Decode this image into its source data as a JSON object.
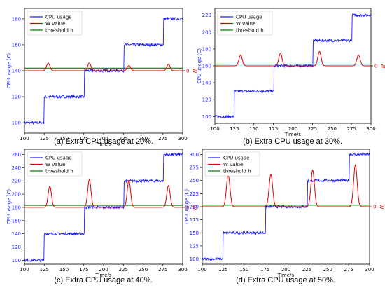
{
  "chart_data": [
    {
      "type": "line",
      "caption": "(a) Extra CPU usage at 20%.",
      "xlabel": "Time/s",
      "ylabel": "CPU usage (C)",
      "right_ylabel": "W",
      "right_ytick": "0",
      "xlim": [
        100,
        300
      ],
      "ylim": [
        92,
        188
      ],
      "xticks": [
        "100",
        "125",
        "150",
        "175",
        "200",
        "225",
        "250",
        "275",
        "300"
      ],
      "yticks": [
        "100",
        "120",
        "140",
        "160",
        "180"
      ],
      "legend": {
        "position": "top-left",
        "entries": [
          "CPU usage",
          "W value",
          "threshold h"
        ]
      },
      "series": [
        {
          "name": "CPU usage",
          "color": "#1a1aff",
          "steps": [
            [
              100,
              100
            ],
            [
              125,
              120
            ],
            [
              176,
              140
            ],
            [
              226,
              160
            ],
            [
              276,
              180
            ]
          ]
        },
        {
          "name": "W value",
          "color": "#e00000",
          "baseline": 140,
          "peaks": [
            [
              130,
              146
            ],
            [
              182,
              146
            ],
            [
              232,
              144
            ],
            [
              282,
              145
            ]
          ]
        },
        {
          "name": "threshold h",
          "color": "#008000",
          "value": 142
        }
      ]
    },
    {
      "type": "line",
      "caption": "(b) Extra CPU usage at 30%.",
      "xlabel": "Time/s",
      "ylabel": "CPU usage (C)",
      "right_ylabel": "W",
      "right_ytick": "0",
      "xlim": [
        100,
        300
      ],
      "ylim": [
        92,
        228
      ],
      "xticks": [
        "100",
        "125",
        "150",
        "175",
        "200",
        "225",
        "250",
        "275",
        "300"
      ],
      "yticks": [
        "100",
        "120",
        "140",
        "160",
        "180",
        "200",
        "220"
      ],
      "legend": {
        "position": "top-left",
        "entries": [
          "CPU usage",
          "W value",
          "threshold h"
        ]
      },
      "series": [
        {
          "name": "CPU usage",
          "color": "#1a1aff",
          "steps": [
            [
              100,
              100
            ],
            [
              125,
              130
            ],
            [
              176,
              160
            ],
            [
              226,
              190
            ],
            [
              276,
              220
            ]
          ]
        },
        {
          "name": "W value",
          "color": "#e00000",
          "baseline": 160,
          "peaks": [
            [
              133,
              173
            ],
            [
              184,
              175
            ],
            [
              234,
              177
            ],
            [
              284,
              173
            ]
          ]
        },
        {
          "name": "threshold h",
          "color": "#008000",
          "value": 162
        }
      ]
    },
    {
      "type": "line",
      "caption": "(c) Extra CPU usage at 40%.",
      "xlabel": "Time/s",
      "ylabel": "CPU usage (C)",
      "right_ylabel": "W",
      "right_ytick": "0",
      "xlim": [
        100,
        300
      ],
      "ylim": [
        94,
        268
      ],
      "xticks": [
        "100",
        "125",
        "150",
        "175",
        "200",
        "225",
        "250",
        "275",
        "300"
      ],
      "yticks": [
        "100",
        "120",
        "140",
        "160",
        "180",
        "200",
        "220",
        "240",
        "260"
      ],
      "legend": {
        "position": "top-left",
        "entries": [
          "CPU usage",
          "W value",
          "threshold h"
        ]
      },
      "series": [
        {
          "name": "CPU usage",
          "color": "#1a1aff",
          "steps": [
            [
              100,
              100
            ],
            [
              125,
              140
            ],
            [
              176,
              180
            ],
            [
              226,
              220
            ],
            [
              276,
              260
            ]
          ]
        },
        {
          "name": "W value",
          "color": "#e00000",
          "baseline": 180,
          "peaks": [
            [
              132,
              212
            ],
            [
              182,
              222
            ],
            [
              232,
              221
            ],
            [
              282,
              213
            ]
          ]
        },
        {
          "name": "threshold h",
          "color": "#008000",
          "value": 183
        }
      ]
    },
    {
      "type": "line",
      "caption": "(d) Extra CPU usage at 50%.",
      "xlabel": "Time/s",
      "ylabel": "CPU usage (C)",
      "right_ylabel": "W",
      "right_ytick": "0",
      "xlim": [
        100,
        300
      ],
      "ylim": [
        90,
        310
      ],
      "xticks": [
        "100",
        "125",
        "150",
        "175",
        "200",
        "225",
        "250",
        "275",
        "300"
      ],
      "yticks": [
        "100",
        "125",
        "150",
        "175",
        "200",
        "225",
        "250",
        "275",
        "300"
      ],
      "legend": {
        "position": "top-left",
        "entries": [
          "CPU usage",
          "W value",
          "threshold h"
        ]
      },
      "series": [
        {
          "name": "CPU usage",
          "color": "#1a1aff",
          "steps": [
            [
              100,
              100
            ],
            [
              125,
              150
            ],
            [
              176,
              200
            ],
            [
              226,
              250
            ],
            [
              276,
              300
            ]
          ]
        },
        {
          "name": "W value",
          "color": "#e00000",
          "baseline": 200,
          "peaks": [
            [
              131,
              262
            ],
            [
              182,
              262
            ],
            [
              232,
              270
            ],
            [
              283,
              280
            ]
          ]
        },
        {
          "name": "threshold h",
          "color": "#008000",
          "value": 203
        }
      ]
    }
  ]
}
